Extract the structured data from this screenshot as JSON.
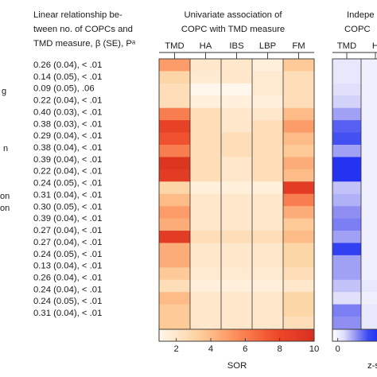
{
  "left_margin_fragments": [
    "g",
    "n",
    "on",
    "on"
  ],
  "stats_header": [
    "Linear relationship be-",
    "tween no. of COPCs and",
    "TMD measure, β (SE), Pᵃ"
  ],
  "stats_rows": [
    "0.26 (0.04), < .01",
    "0.14 (0.05), < .01",
    "0.09 (0.05), .06",
    "0.22 (0.04), < .01",
    "0.40 (0.03), < .01",
    "0.38 (0.03), < .01",
    "0.29 (0.04), < .01",
    "0.38 (0.04), < .01",
    "0.39 (0.04), < .01",
    "0.22 (0.04), < .01",
    "0.24 (0.05), < .01",
    "0.31 (0.04), < .01",
    "0.30 (0.05), < .01",
    "0.39 (0.04), < .01",
    "0.27 (0.04), < .01",
    "0.27 (0.04), < .01",
    "0.24 (0.05), < .01",
    "0.13 (0.04), < .01",
    "0.26 (0.04), < .01",
    "0.24 (0.04), < .01",
    "0.24 (0.05), < .01",
    "0.31 (0.04), < .01"
  ],
  "chart_data": [
    {
      "type": "heatmap",
      "title": [
        "Univariate association of",
        "COPC with TMD measure"
      ],
      "columns": [
        "TMD",
        "HA",
        "IBS",
        "LBP",
        "FM"
      ],
      "colorbar": {
        "label": "SOR",
        "ticks": [
          2,
          4,
          6,
          8,
          10
        ],
        "range": [
          1,
          10
        ],
        "colors": [
          "#fff7ec",
          "#fdd2a0",
          "#fc8d59",
          "#ef4a2a",
          "#d7301f"
        ]
      },
      "values": [
        [
          5,
          2,
          2,
          1.5,
          3.5
        ],
        [
          3,
          1.8,
          2,
          1.8,
          2.5
        ],
        [
          2.5,
          1,
          1,
          1.8,
          2.5
        ],
        [
          2.5,
          1.5,
          1.5,
          1.5,
          2.5
        ],
        [
          6,
          2.5,
          2,
          2,
          4
        ],
        [
          8.5,
          2.5,
          2,
          2.5,
          5
        ],
        [
          7.5,
          2.5,
          2.5,
          2.5,
          4
        ],
        [
          6,
          2.5,
          2.5,
          2.5,
          3.5
        ],
        [
          9.5,
          2.5,
          2,
          2.5,
          4.5
        ],
        [
          9,
          2.5,
          2,
          2.5,
          4
        ],
        [
          3,
          1.5,
          1.5,
          1.5,
          9
        ],
        [
          4,
          2,
          2,
          2,
          6
        ],
        [
          5,
          2,
          2,
          2,
          4.5
        ],
        [
          4.5,
          2,
          2,
          2,
          3.5
        ],
        [
          9,
          2.5,
          2.5,
          2.5,
          4
        ],
        [
          4.5,
          2,
          2,
          2,
          3
        ],
        [
          4.5,
          2,
          2,
          2,
          3
        ],
        [
          3.5,
          1.8,
          1.8,
          1.8,
          2.5
        ],
        [
          2.5,
          1.5,
          1.5,
          1.5,
          2
        ],
        [
          4,
          2,
          2,
          2,
          3
        ],
        [
          3.5,
          2,
          2,
          2,
          3
        ],
        [
          3.5,
          2,
          2,
          2,
          2.5
        ],
        [
          4,
          2,
          2,
          2,
          3
        ]
      ]
    },
    {
      "type": "heatmap",
      "title": [
        "Indepe",
        "COPC"
      ],
      "columns": [
        "TMD",
        "H"
      ],
      "colorbar": {
        "label": "z-s",
        "ticks": [
          0
        ],
        "range": [
          -1,
          8
        ],
        "colors": [
          "#ffffff",
          "#dcdcfb",
          "#8f8ff3",
          "#3b49f2",
          "#1c2df0"
        ]
      },
      "values": [
        [
          0.5,
          0
        ],
        [
          0.5,
          0
        ],
        [
          1,
          0
        ],
        [
          1.5,
          0
        ],
        [
          3,
          0
        ],
        [
          5,
          0
        ],
        [
          5.5,
          0
        ],
        [
          3,
          0
        ],
        [
          7.5,
          0
        ],
        [
          7.5,
          0
        ],
        [
          2,
          0
        ],
        [
          2.5,
          0
        ],
        [
          3.5,
          0
        ],
        [
          4,
          0
        ],
        [
          3,
          0
        ],
        [
          6.5,
          0
        ],
        [
          3,
          0
        ],
        [
          3,
          0
        ],
        [
          2,
          0.5
        ],
        [
          1,
          0
        ],
        [
          4,
          0.5
        ],
        [
          3.5,
          0.5
        ],
        [
          3,
          0
        ]
      ]
    }
  ]
}
